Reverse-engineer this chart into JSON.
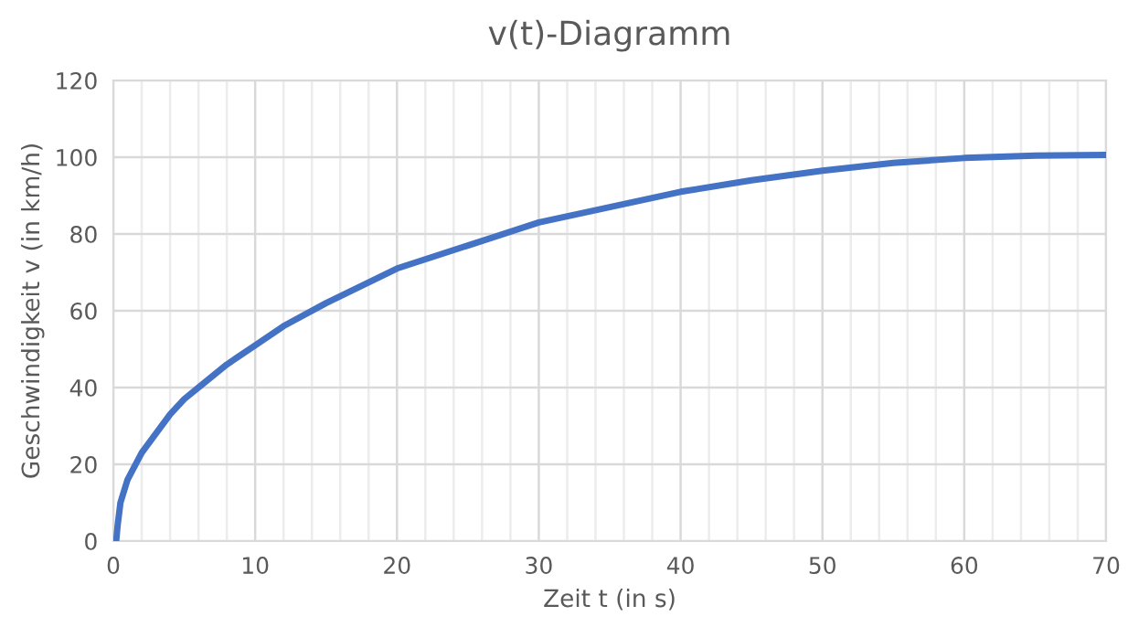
{
  "chart_data": {
    "type": "line",
    "title": "v(t)-Diagramm",
    "xlabel": "Zeit t (in s)",
    "ylabel": "Geschwindigkeit v (in km/h)",
    "x": [
      0.2,
      0.3,
      0.5,
      1,
      2,
      3,
      4,
      5,
      6,
      8,
      10,
      12,
      15,
      20,
      25,
      30,
      35,
      40,
      45,
      50,
      55,
      60,
      65,
      70
    ],
    "series": [
      {
        "color": "#4472c4",
        "values": [
          0,
          4,
          10,
          16,
          23,
          28,
          33,
          37,
          40,
          46,
          51,
          56,
          62,
          71,
          77,
          83,
          87,
          91,
          94,
          96.5,
          98.5,
          99.8,
          100.4,
          100.6
        ]
      }
    ],
    "xlim": [
      0,
      70
    ],
    "ylim": [
      0,
      120
    ],
    "xticks": [
      0,
      {
        "value": 2,
        "label": null
      },
      {
        "value": 4,
        "label": null
      },
      {
        "value": 6,
        "label": null
      },
      {
        "value": 8,
        "label": null
      },
      10,
      {
        "value": 12,
        "label": null
      },
      {
        "value": 14,
        "label": null
      },
      {
        "value": 16,
        "label": null
      },
      {
        "value": 18,
        "label": null
      },
      20,
      {
        "value": 22,
        "label": null
      },
      {
        "value": 24,
        "label": null
      },
      {
        "value": 26,
        "label": null
      },
      {
        "value": 28,
        "label": null
      },
      30,
      {
        "value": 32,
        "label": null
      },
      {
        "value": 34,
        "label": null
      },
      {
        "value": 36,
        "label": null
      },
      {
        "value": 38,
        "label": null
      },
      40,
      {
        "value": 42,
        "label": null
      },
      {
        "value": 44,
        "label": null
      },
      {
        "value": 46,
        "label": null
      },
      {
        "value": 48,
        "label": null
      },
      50,
      {
        "value": 52,
        "label": null
      },
      {
        "value": 54,
        "label": null
      },
      {
        "value": 56,
        "label": null
      },
      {
        "value": 58,
        "label": null
      },
      60,
      {
        "value": 62,
        "label": null
      },
      {
        "value": 64,
        "label": null
      },
      {
        "value": 66,
        "label": null
      },
      {
        "value": 68,
        "label": null
      },
      70
    ],
    "yticks": [
      0,
      20,
      40,
      60,
      80,
      100,
      120
    ],
    "grid": true,
    "marker": "none",
    "line_style": "solid",
    "legend": false
  }
}
